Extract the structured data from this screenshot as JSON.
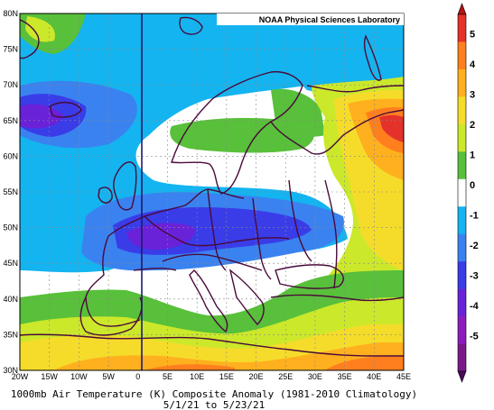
{
  "map": {
    "credit": "NOAA Physical Sciences Laboratory",
    "lat_labels": [
      "80N",
      "75N",
      "70N",
      "65N",
      "60N",
      "55N",
      "50N",
      "45N",
      "40N",
      "35N",
      "30N"
    ],
    "lon_labels": [
      "20W",
      "15W",
      "10W",
      "5W",
      "0",
      "5E",
      "10E",
      "15E",
      "20E",
      "25E",
      "30E",
      "35E",
      "40E",
      "45E"
    ],
    "caption_line1": "1000mb Air Temperature (K) Composite Anomaly (1981-2010 Climatology)",
    "caption_line2": "5/1/21 to 5/23/21",
    "extent": {
      "lon_min": -20,
      "lon_max": 45,
      "lat_min": 30,
      "lat_max": 80
    }
  },
  "colorbar": {
    "labels": [
      "5",
      "4",
      "3",
      "2",
      "1",
      "0",
      "-1",
      "-2",
      "-3",
      "-4",
      "-5"
    ],
    "colors": [
      "#e4322a",
      "#ff7f1e",
      "#ffb01e",
      "#f5dc2a",
      "#cce82a",
      "#58c03a",
      "#ffffff",
      "#14b4f0",
      "#3a82f0",
      "#3a3ce8",
      "#6a22d8",
      "#8c1cbe",
      "#7a1a8a"
    ],
    "end_colors": {
      "top": "#b41414",
      "bottom": "#4a0a5a"
    }
  }
}
